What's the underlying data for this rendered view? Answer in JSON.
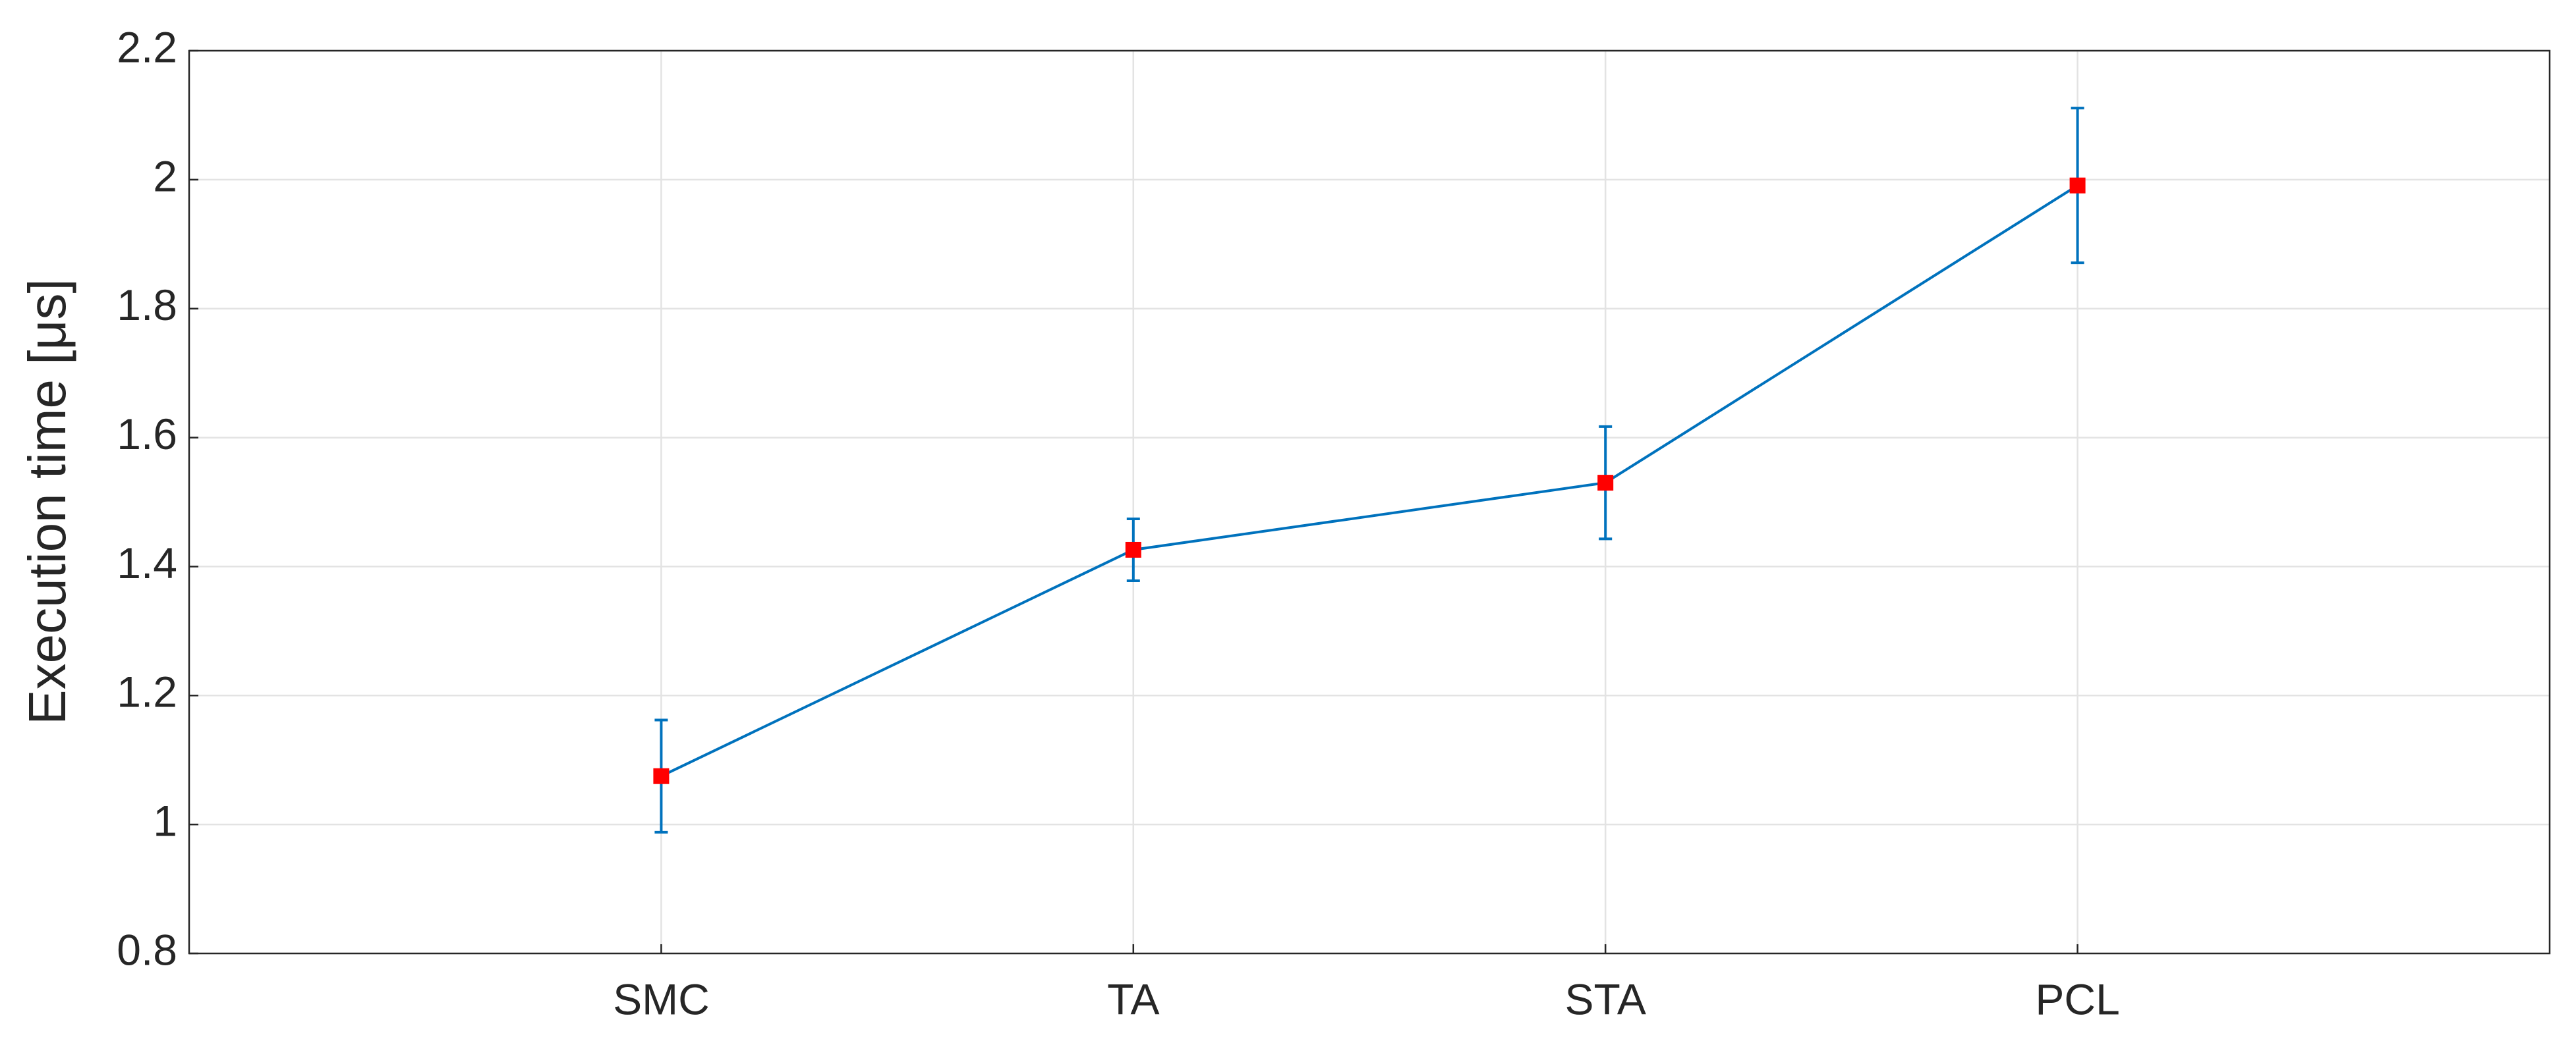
{
  "chart_data": {
    "type": "line",
    "y_label": "Execution time [μs]",
    "categories": [
      "SMC",
      "TA",
      "STA",
      "PCL"
    ],
    "series": [
      {
        "color": "#0072bd",
        "marker_color": "#ff0000",
        "values": [
          1.075,
          1.426,
          1.53,
          1.991
        ],
        "errors": [
          0.087,
          0.048,
          0.087,
          0.12
        ]
      }
    ],
    "ylim": [
      0.8,
      2.2
    ],
    "yticks": [
      0.8,
      1,
      1.2,
      1.4,
      1.6,
      1.8,
      2,
      2.2
    ],
    "grid": true
  }
}
